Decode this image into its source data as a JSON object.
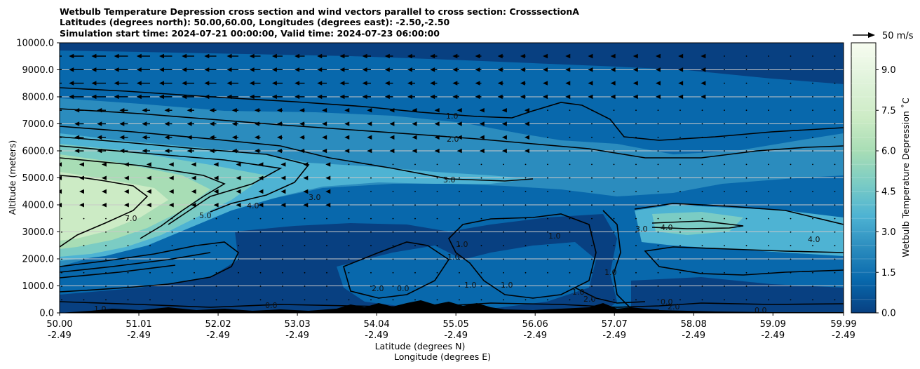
{
  "chart_data": {
    "type": "contour",
    "title_lines": [
      "Wetbulb Temperature Depression cross section and wind vectors parallel to cross section: CrosssectionA",
      "Latitudes (degrees north): 50.00,60.00, Longitudes (degrees east): -2.50,-2.50",
      "Simulation start time: 2024-07-21 00:00:00, Valid time: 2024-07-23 06:00:00"
    ],
    "xlabel_lines": [
      "Latitude (degrees N)",
      "Longitude (degrees E)"
    ],
    "ylabel": "Altitude (meters)",
    "x_ticks": [
      {
        "lat": "50.00",
        "lon": "-2.49"
      },
      {
        "lat": "51.01",
        "lon": "-2.49"
      },
      {
        "lat": "52.02",
        "lon": "-2.49"
      },
      {
        "lat": "53.03",
        "lon": "-2.49"
      },
      {
        "lat": "54.04",
        "lon": "-2.49"
      },
      {
        "lat": "55.05",
        "lon": "-2.49"
      },
      {
        "lat": "56.06",
        "lon": "-2.49"
      },
      {
        "lat": "57.07",
        "lon": "-2.49"
      },
      {
        "lat": "58.08",
        "lon": "-2.49"
      },
      {
        "lat": "59.09",
        "lon": "-2.49"
      },
      {
        "lat": "59.99",
        "lon": "-2.49"
      }
    ],
    "xlim": [
      50.0,
      59.99
    ],
    "y_ticks": [
      "0.0",
      "1000.0",
      "2000.0",
      "3000.0",
      "4000.0",
      "5000.0",
      "6000.0",
      "7000.0",
      "8000.0",
      "9000.0",
      "10000.0"
    ],
    "ylim": [
      0,
      10000
    ],
    "grid": "horizontal",
    "colorbar": {
      "label": "Wetbulb Temperature Depression ˚C",
      "ticks": [
        "0.0",
        "1.5",
        "3.0",
        "4.5",
        "6.0",
        "7.5",
        "9.0"
      ],
      "range": [
        0,
        10
      ],
      "colormap": "GnBu_r",
      "colors": [
        "#084081",
        "#0868ac",
        "#2b8cbe",
        "#4eb3d3",
        "#7bccc4",
        "#a8ddb5",
        "#ccebc5",
        "#e0f3db",
        "#f7fcf0"
      ]
    },
    "wind_key": {
      "label": "50 m/s"
    },
    "contour_labels": [
      "1.0",
      "2.0",
      "3.0",
      "4.0",
      "5.0",
      "7.0",
      "0.0"
    ],
    "terrain_color": "#000000"
  }
}
